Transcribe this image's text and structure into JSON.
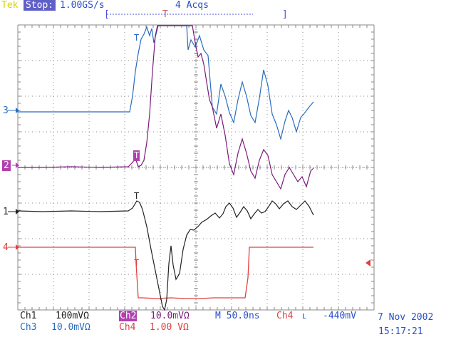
{
  "header": {
    "brand": "Tek",
    "state": "Stop:",
    "rate": "1.00GS/s",
    "acqs": "4 Acqs",
    "bracket_left": "[",
    "trigger_marker": "T",
    "bracket_right": "]"
  },
  "markers": {
    "ch3": "3",
    "ch2": "2",
    "ch1": "1",
    "ch4": "4",
    "trig_letter": "T"
  },
  "footer": {
    "ch1_label": "Ch1",
    "ch1_scale": "100mVΩ",
    "ch2_label": "Ch2",
    "ch2_scale": "10.0mVΩ",
    "timebase": "M 50.0ns",
    "trig_source": "Ch4",
    "trig_slope": "ⳑ",
    "trig_level": "-440mV",
    "ch3_label": "Ch3",
    "ch3_scale": "10.0mVΩ",
    "ch4_label": "Ch4",
    "ch4_scale": "1.00 VΩ",
    "date": "7 Nov 2002",
    "time": "15:17:21"
  },
  "colors": {
    "ch1": "#222222",
    "ch2": "#7a1a7a",
    "ch3": "#2a6bbf",
    "ch4": "#e04040",
    "grid": "#888888",
    "brand": "#d6d600",
    "stop_bg": "#5f5fc8",
    "header_bracket": "#5252d8"
  }
}
